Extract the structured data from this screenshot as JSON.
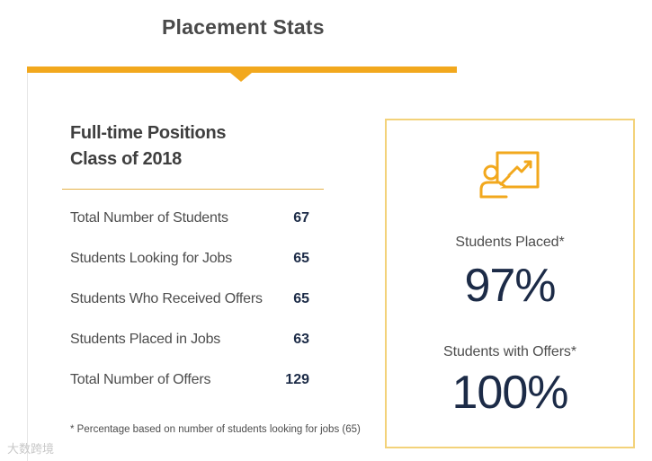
{
  "page": {
    "title": "Placement Stats",
    "watermark": "大数跨境"
  },
  "section": {
    "heading_line1": "Full-time Positions",
    "heading_line2": "Class of 2018"
  },
  "stats": [
    {
      "label": "Total Number of Students",
      "value": "67"
    },
    {
      "label": "Students Looking for Jobs",
      "value": "65"
    },
    {
      "label": "Students Who Received Offers",
      "value": "65"
    },
    {
      "label": "Students Placed in Jobs",
      "value": "63"
    },
    {
      "label": "Total Number of Offers",
      "value": "129"
    }
  ],
  "footnote": "* Percentage based on number of students looking for jobs (65)",
  "card": {
    "icon": "presentation-growth-icon",
    "placed_label": "Students Placed*",
    "placed_value": "97%",
    "offers_label": "Students with Offers*",
    "offers_value": "100%"
  },
  "colors": {
    "accent": "#f2a81d",
    "card_border": "#f3d27a",
    "value_navy": "#1c2b47"
  }
}
